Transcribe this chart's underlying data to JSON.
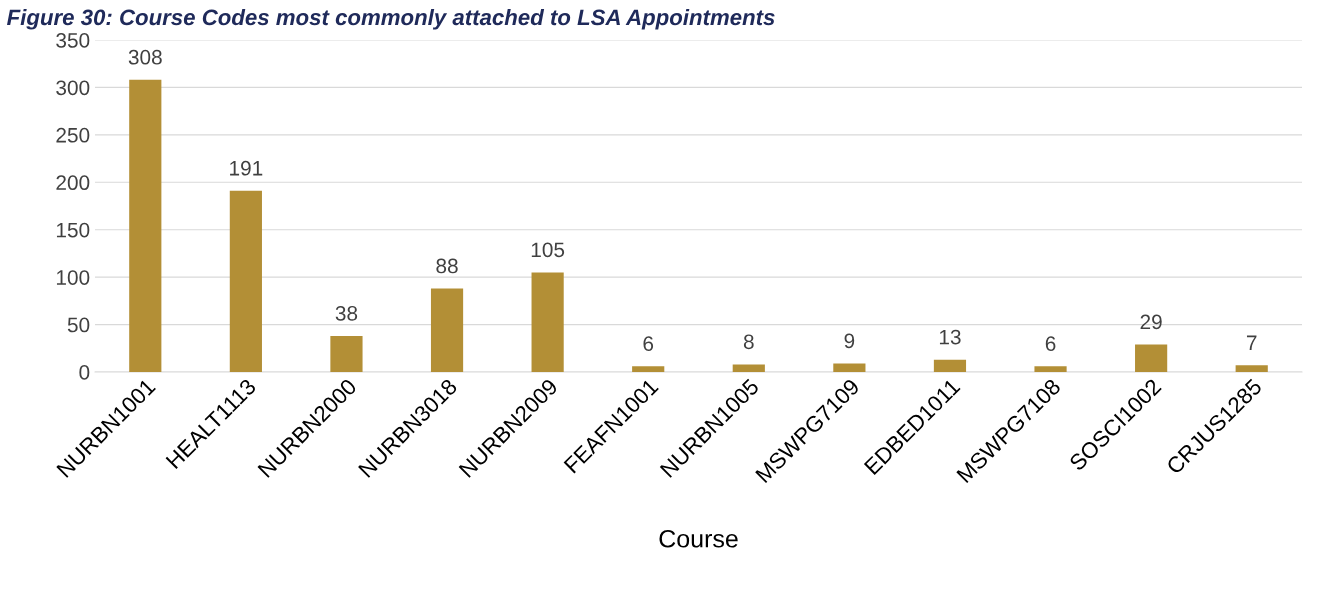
{
  "chart_data": {
    "type": "bar",
    "title": "Figure 30: Course Codes most commonly attached to LSA Appointments",
    "xlabel": "Course",
    "categories": [
      "NURBN1001",
      "HEALT1113",
      "NURBN2000",
      "NURBN3018",
      "NURBN2009",
      "FEAFN1001",
      "NURBN1005",
      "MSWPG7109",
      "EDBED1011",
      "MSWPG7108",
      "SOSCI1002",
      "CRJUS1285"
    ],
    "values": [
      308,
      191,
      38,
      88,
      105,
      6,
      8,
      9,
      13,
      6,
      29,
      7
    ],
    "color": "#b38f36",
    "ylim": [
      0,
      350
    ],
    "yticks": [
      0,
      50,
      100,
      150,
      200,
      250,
      300,
      350
    ],
    "grid": "y",
    "data_labels": true,
    "legend": false
  }
}
